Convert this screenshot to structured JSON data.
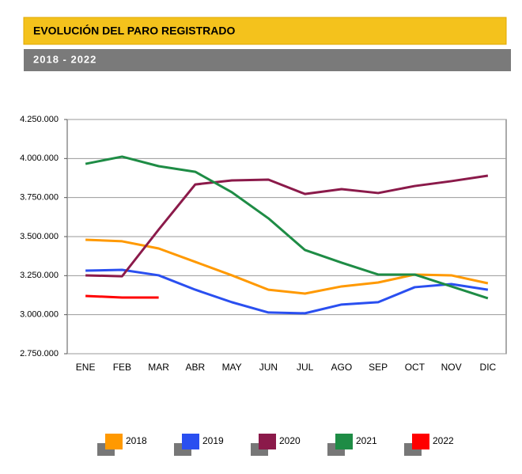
{
  "chart_data": {
    "type": "line",
    "title": "EVOLUCIÓN DEL PARO REGISTRADO",
    "subtitle": "2018 - 2022",
    "categories": [
      "ENE",
      "FEB",
      "MAR",
      "ABR",
      "MAY",
      "JUN",
      "JUL",
      "AGO",
      "SEP",
      "OCT",
      "NOV",
      "DIC"
    ],
    "series": [
      {
        "name": "2018",
        "color": "#ff9900",
        "values": [
          3480000,
          3470000,
          3424000,
          3338000,
          3252000,
          3160000,
          3135000,
          3181000,
          3206000,
          3257000,
          3252000,
          3201000
        ]
      },
      {
        "name": "2019",
        "color": "#2a4ff0",
        "values": [
          3282000,
          3287000,
          3252000,
          3160000,
          3080000,
          3014000,
          3009000,
          3065000,
          3080000,
          3176000,
          3196000,
          3160000
        ]
      },
      {
        "name": "2020",
        "color": "#8b1a4a",
        "values": [
          3252000,
          3246000,
          3545000,
          3834000,
          3860000,
          3865000,
          3773000,
          3804000,
          3779000,
          3824000,
          3855000,
          3890000
        ]
      },
      {
        "name": "2021",
        "color": "#1e8c45",
        "values": [
          3966000,
          4012000,
          3951000,
          3915000,
          3784000,
          3617000,
          3414000,
          3333000,
          3257000,
          3257000,
          3181000,
          3105000
        ]
      },
      {
        "name": "2022",
        "color": "#ff0000",
        "values": [
          3120000,
          3110000,
          3110000,
          null,
          null,
          null,
          null,
          null,
          null,
          null,
          null,
          null
        ]
      }
    ],
    "ylim": [
      2750000,
      4250000
    ],
    "yticks": [
      {
        "value": 2750000,
        "label": "2.750.000"
      },
      {
        "value": 3000000,
        "label": "3.000.000"
      },
      {
        "value": 3250000,
        "label": "3.250.000"
      },
      {
        "value": 3500000,
        "label": "3.500.000"
      },
      {
        "value": 3750000,
        "label": "3.750.000"
      },
      {
        "value": 4000000,
        "label": "4.000.000"
      },
      {
        "value": 4250000,
        "label": "4.250.000"
      }
    ],
    "grid": true,
    "legend": "bottom"
  }
}
